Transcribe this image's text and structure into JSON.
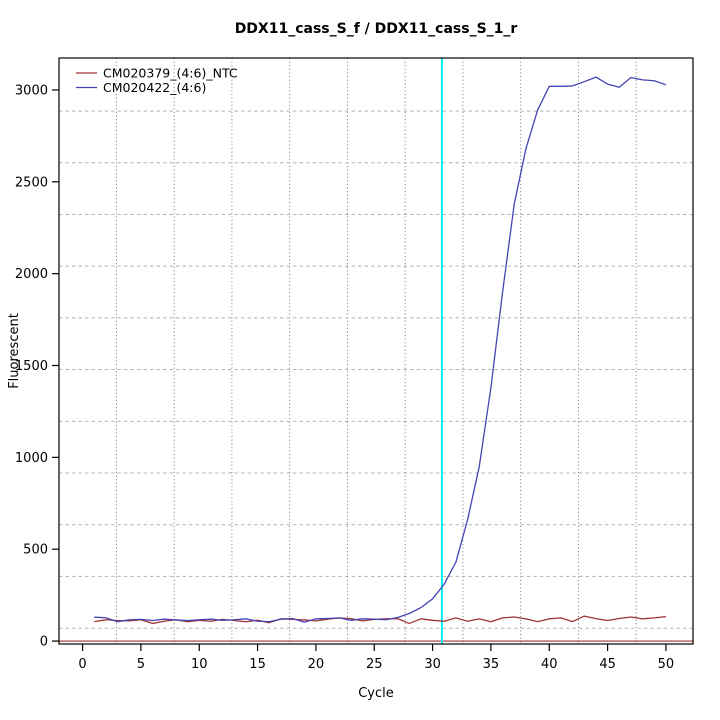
{
  "title": "DDX11_cass_S_f / DDX11_cass_S_1_r",
  "axes": {
    "xlabel": "Cycle",
    "ylabel": "Fluorescent"
  },
  "legend": {
    "position": "topleft",
    "items": [
      {
        "label": "CM020379_(4:6)_NTC",
        "color": "#A03434"
      },
      {
        "label": "CM020422_(4:6)",
        "color": "#4444B4"
      }
    ]
  },
  "chart_data": {
    "type": "line",
    "title": "DDX11_cass_S_f / DDX11_cass_S_1_r",
    "xlabel": "Cycle",
    "ylabel": "Fluorescent",
    "xlim": [
      -2.02,
      52.32
    ],
    "ylim": [
      -16,
      3174
    ],
    "x_ticks": [
      0,
      5,
      10,
      15,
      20,
      25,
      30,
      35,
      40,
      45,
      50
    ],
    "y_ticks": [
      0,
      500,
      1000,
      1500,
      2000,
      2500,
      3000
    ],
    "x": [
      1,
      2,
      3,
      4,
      5,
      6,
      7,
      8,
      9,
      10,
      11,
      12,
      13,
      14,
      15,
      16,
      17,
      18,
      19,
      20,
      21,
      22,
      23,
      24,
      25,
      26,
      27,
      28,
      29,
      30,
      31,
      32,
      33,
      34,
      35,
      36,
      37,
      38,
      39,
      40,
      41,
      42,
      43,
      44,
      45,
      46,
      47,
      48,
      49,
      50
    ],
    "series": [
      {
        "name": "CM020379_(4:6)_NTC",
        "color": "#A03434",
        "values": [
          106,
          116,
          112,
          110,
          116,
          96,
          108,
          116,
          105,
          113,
          108,
          118,
          112,
          105,
          113,
          100,
          121,
          118,
          115,
          110,
          119,
          126,
          122,
          110,
          118,
          121,
          122,
          96,
          121,
          113,
          108,
          126,
          108,
          121,
          105,
          126,
          131,
          121,
          106,
          121,
          126,
          106,
          136,
          122,
          112,
          123,
          131,
          121,
          126,
          133
        ]
      },
      {
        "name": "CM020422_(4:6)",
        "color": "#4444B4",
        "values": [
          130,
          127,
          105,
          116,
          118,
          112,
          119,
          115,
          112,
          116,
          119,
          113,
          116,
          121,
          108,
          106,
          119,
          123,
          103,
          121,
          123,
          126,
          113,
          121,
          119,
          116,
          128,
          150,
          182,
          230,
          310,
          430,
          660,
          950,
          1380,
          1900,
          2380,
          2680,
          2890,
          3020,
          3020,
          3022,
          3045,
          3070,
          3032,
          3015,
          3068,
          3055,
          3050,
          3028
        ]
      }
    ],
    "threshold_cycle_line": {
      "x": 30.8,
      "color": "#00EEEE"
    },
    "zero_line": {
      "y": 0,
      "color": "#A03434"
    },
    "grid": {
      "on": true,
      "vertical_at_cycles": [
        2.9,
        7.85,
        12.8,
        17.75,
        22.7,
        27.65,
        32.6,
        37.55,
        42.5,
        47.45
      ],
      "vertical_style": "dotted",
      "horizontal_at_values": [
        70,
        352,
        633,
        915,
        1196,
        1478,
        1759,
        2041,
        2322,
        2604,
        2885
      ],
      "horizontal_style": "dashed"
    },
    "legend_position": "topleft"
  }
}
